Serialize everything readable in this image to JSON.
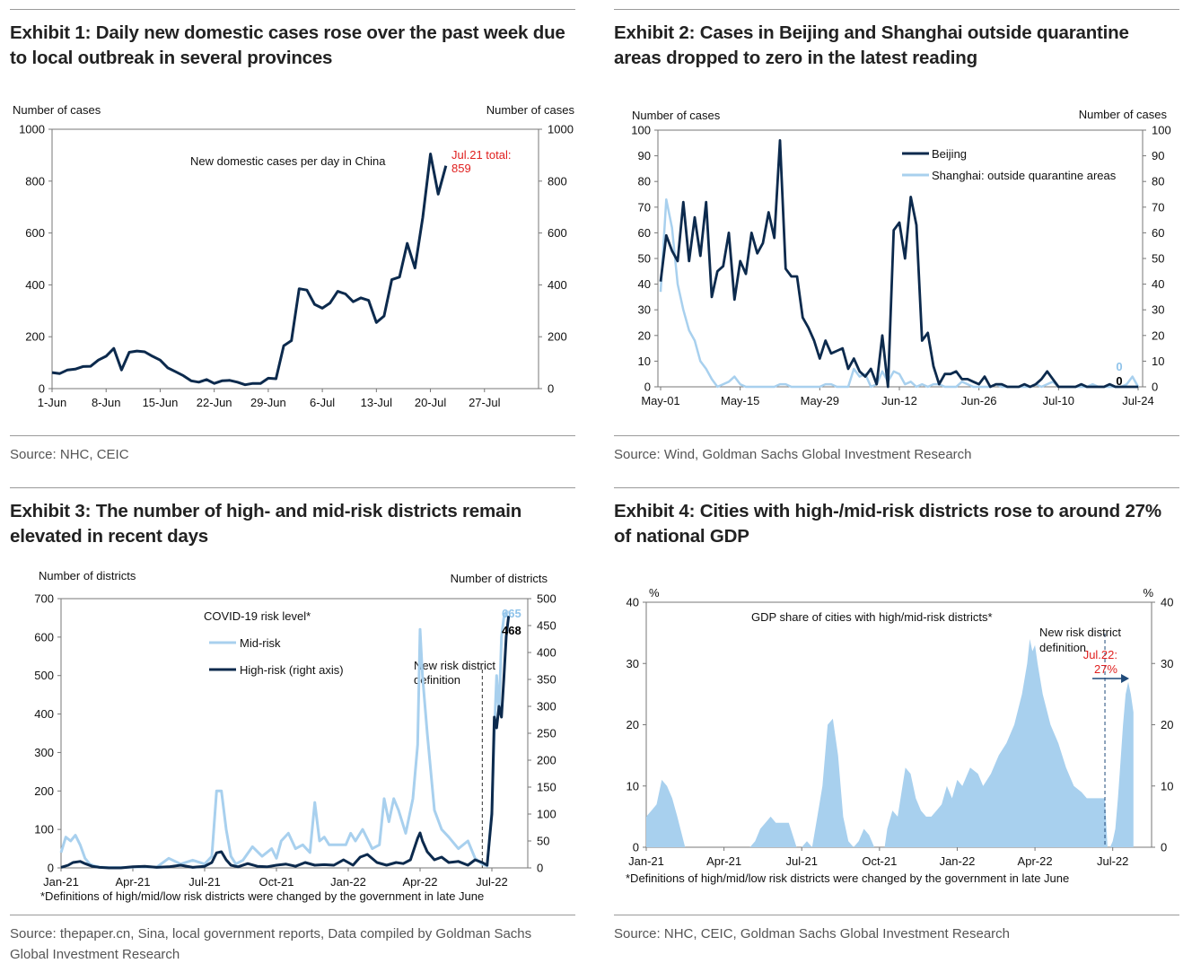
{
  "exhibits": [
    {
      "title": "Exhibit 1: Daily new domestic cases rose over the past week due to local outbreak in several provinces",
      "source": "Source: NHC, CEIC"
    },
    {
      "title": "Exhibit 2: Cases in Beijing and Shanghai outside quarantine areas dropped to zero in the latest reading",
      "source": "Source: Wind, Goldman Sachs Global Investment Research"
    },
    {
      "title": "Exhibit 3: The number of high- and mid-risk districts remain elevated in recent days",
      "source": "Source: thepaper.cn, Sina, local government reports, Data compiled by Goldman Sachs Global Investment Research"
    },
    {
      "title": "Exhibit 4: Cities with high-/mid-risk districts rose to around 27% of national GDP",
      "source": "Source: NHC, CEIC, Goldman Sachs Global Investment Research"
    }
  ],
  "colors": {
    "navy": "#0c2a4d",
    "light_blue": "#a8d0ee",
    "red": "#e0201f",
    "rule": "#9a9a9a"
  },
  "chart_data": [
    {
      "type": "line",
      "title": "New domestic cases per day in China",
      "ylabel_left": "Number of cases",
      "ylabel_right": "Number of cases",
      "ylim": [
        0,
        1000
      ],
      "yticks": [
        "0",
        "200",
        "400",
        "600",
        "800",
        "1000"
      ],
      "xlim": [
        0,
        63
      ],
      "xticks": [
        {
          "x": 0,
          "label": "1-Jun"
        },
        {
          "x": 7,
          "label": "8-Jun"
        },
        {
          "x": 14,
          "label": "15-Jun"
        },
        {
          "x": 21,
          "label": "22-Jun"
        },
        {
          "x": 28,
          "label": "29-Jun"
        },
        {
          "x": 35,
          "label": "6-Jul"
        },
        {
          "x": 42,
          "label": "13-Jul"
        },
        {
          "x": 49,
          "label": "20-Jul"
        },
        {
          "x": 56,
          "label": "27-Jul"
        }
      ],
      "annotation": "Jul.21 total: 859",
      "series": [
        {
          "name": "New domestic cases per day in China",
          "color": "#0c2a4d",
          "values": [
            62,
            58,
            72,
            75,
            85,
            86,
            110,
            125,
            155,
            72,
            140,
            145,
            142,
            125,
            110,
            80,
            65,
            50,
            30,
            25,
            35,
            20,
            30,
            32,
            25,
            15,
            20,
            20,
            40,
            38,
            165,
            185,
            385,
            380,
            325,
            310,
            330,
            375,
            365,
            335,
            350,
            340,
            255,
            280,
            420,
            430,
            560,
            465,
            660,
            905,
            750,
            859
          ]
        }
      ]
    },
    {
      "type": "line",
      "ylabel_left": "Number of cases",
      "ylabel_right": "Number of cases",
      "ylim": [
        0,
        100
      ],
      "yticks": [
        "0",
        "10",
        "20",
        "30",
        "40",
        "50",
        "60",
        "70",
        "80",
        "90",
        "100"
      ],
      "xlim": [
        0,
        84
      ],
      "xticks": [
        {
          "x": 0,
          "label": "May-01"
        },
        {
          "x": 14,
          "label": "May-15"
        },
        {
          "x": 28,
          "label": "May-29"
        },
        {
          "x": 42,
          "label": "Jun-12"
        },
        {
          "x": 56,
          "label": "Jun-26"
        },
        {
          "x": 70,
          "label": "Jul-10"
        },
        {
          "x": 84,
          "label": "Jul-24"
        }
      ],
      "end_labels": [
        "0",
        "0"
      ],
      "series": [
        {
          "name": "Beijing",
          "color": "#0c2a4d",
          "values": [
            41,
            59,
            53,
            49,
            72,
            49,
            66,
            51,
            72,
            35,
            45,
            47,
            60,
            34,
            49,
            44,
            60,
            52,
            56,
            68,
            58,
            96,
            46,
            43,
            43,
            27,
            23,
            18,
            11,
            18,
            13,
            14,
            15,
            7,
            11,
            6,
            4,
            7,
            1,
            20,
            0,
            61,
            64,
            50,
            74,
            63,
            18,
            21,
            8,
            1,
            5,
            5,
            6,
            3,
            3,
            2,
            1,
            4,
            0,
            1,
            1,
            0,
            0,
            0,
            1,
            0,
            1,
            3,
            6,
            3,
            0,
            0,
            0,
            0,
            1,
            0,
            0,
            0,
            0,
            1,
            0,
            0,
            0,
            0,
            0
          ]
        },
        {
          "name": "Shanghai: outside quarantine areas",
          "color": "#a8d0ee",
          "values": [
            37,
            73,
            62,
            40,
            30,
            22,
            18,
            10,
            7,
            3,
            0,
            1,
            2,
            4,
            1,
            0,
            0,
            0,
            0,
            0,
            0,
            1,
            1,
            0,
            0,
            0,
            0,
            0,
            0,
            1,
            1,
            0,
            0,
            0,
            7,
            4,
            5,
            0,
            1,
            6,
            2,
            6,
            5,
            1,
            2,
            0,
            1,
            0,
            1,
            1,
            0,
            0,
            0,
            2,
            1,
            0,
            0,
            0,
            0,
            1,
            0,
            0,
            0,
            0,
            0,
            0,
            1,
            0,
            1,
            2,
            0,
            0,
            0,
            0,
            0,
            0,
            1,
            0,
            0,
            0,
            0,
            0,
            1,
            4,
            0
          ]
        }
      ]
    },
    {
      "type": "line",
      "title": "COVID-19 risk level*",
      "ylabel_left": "Number of districts",
      "ylabel_right": "Number of districts",
      "ylim_left": [
        0,
        700
      ],
      "ylim_right": [
        0,
        500
      ],
      "yticks_left": [
        "0",
        "100",
        "200",
        "300",
        "400",
        "500",
        "600",
        "700"
      ],
      "yticks_right": [
        "0",
        "50",
        "100",
        "150",
        "200",
        "250",
        "300",
        "350",
        "400",
        "450",
        "500"
      ],
      "xlim": [
        0,
        19.5
      ],
      "xticks": [
        {
          "x": 0,
          "label": "Jan-21"
        },
        {
          "x": 3,
          "label": "Apr-21"
        },
        {
          "x": 6,
          "label": "Jul-21"
        },
        {
          "x": 9,
          "label": "Oct-21"
        },
        {
          "x": 12,
          "label": "Jan-22"
        },
        {
          "x": 15,
          "label": "Apr-22"
        },
        {
          "x": 18,
          "label": "Jul-22"
        }
      ],
      "vline_x": 17.6,
      "vline_label": "New risk district definition",
      "end_labels": [
        "665",
        "468"
      ],
      "footnote": "*Definitions of high/mid/low risk districts were changed by the government in late June",
      "series": [
        {
          "name": "Mid-risk",
          "color": "#a8d0ee",
          "axis": "left",
          "x": [
            0,
            0.2,
            0.4,
            0.6,
            0.8,
            1.0,
            1.2,
            1.4,
            1.6,
            2.0,
            2.5,
            3.0,
            3.5,
            4.0,
            4.5,
            5.0,
            5.5,
            6.0,
            6.3,
            6.5,
            6.7,
            6.9,
            7.1,
            7.3,
            7.6,
            8.0,
            8.4,
            8.8,
            9.0,
            9.2,
            9.5,
            9.8,
            10.1,
            10.4,
            10.6,
            10.8,
            11.0,
            11.2,
            11.5,
            11.7,
            11.9,
            12.1,
            12.3,
            12.6,
            13.0,
            13.3,
            13.5,
            13.7,
            13.9,
            14.1,
            14.4,
            14.7,
            14.9,
            15.0,
            15.1,
            15.3,
            15.6,
            15.9,
            16.2,
            16.6,
            17.0,
            17.3,
            17.6,
            17.8,
            18.0,
            18.1,
            18.2,
            18.3,
            18.4,
            18.5,
            18.6,
            18.7
          ],
          "y": [
            40,
            80,
            70,
            85,
            60,
            25,
            10,
            5,
            2,
            1,
            1,
            2,
            3,
            2,
            25,
            10,
            20,
            10,
            30,
            200,
            200,
            100,
            30,
            10,
            20,
            55,
            30,
            50,
            25,
            70,
            90,
            50,
            60,
            40,
            170,
            70,
            80,
            60,
            60,
            60,
            60,
            90,
            70,
            100,
            50,
            60,
            180,
            120,
            180,
            150,
            90,
            180,
            320,
            620,
            500,
            350,
            150,
            100,
            80,
            50,
            70,
            25,
            10,
            5,
            150,
            350,
            500,
            400,
            600,
            650,
            665,
            665
          ]
        },
        {
          "name": "High-risk (right axis)",
          "color": "#0c2a4d",
          "axis": "right",
          "x": [
            0,
            0.3,
            0.5,
            0.8,
            1.0,
            1.3,
            1.6,
            2.0,
            2.5,
            3.0,
            3.5,
            4.0,
            4.5,
            5.0,
            5.5,
            6.0,
            6.3,
            6.5,
            6.7,
            6.9,
            7.1,
            7.4,
            7.8,
            8.2,
            8.6,
            9.0,
            9.4,
            9.8,
            10.2,
            10.6,
            11.0,
            11.4,
            11.8,
            12.2,
            12.5,
            12.8,
            13.2,
            13.6,
            14.0,
            14.3,
            14.6,
            14.9,
            15.0,
            15.1,
            15.3,
            15.6,
            15.9,
            16.2,
            16.6,
            17.0,
            17.3,
            17.6,
            17.8,
            18.0,
            18.1,
            18.2,
            18.3,
            18.4,
            18.5,
            18.6,
            18.7
          ],
          "y": [
            1,
            5,
            10,
            12,
            8,
            3,
            1,
            0,
            0,
            2,
            3,
            1,
            2,
            5,
            1,
            3,
            10,
            28,
            30,
            15,
            5,
            2,
            8,
            3,
            2,
            5,
            7,
            3,
            10,
            5,
            6,
            5,
            15,
            5,
            20,
            25,
            10,
            5,
            10,
            8,
            15,
            55,
            65,
            50,
            30,
            15,
            20,
            10,
            12,
            5,
            15,
            10,
            5,
            100,
            280,
            260,
            300,
            280,
            350,
            430,
            468
          ]
        }
      ]
    },
    {
      "type": "area",
      "title": "GDP share of cities with high/mid-risk districts*",
      "ylabel_left": "%",
      "ylabel_right": "%",
      "ylim": [
        0,
        40
      ],
      "yticks": [
        "0",
        "10",
        "20",
        "30",
        "40"
      ],
      "xlim": [
        0,
        19.5
      ],
      "xticks": [
        {
          "x": 0,
          "label": "Jan-21"
        },
        {
          "x": 3,
          "label": "Apr-21"
        },
        {
          "x": 6,
          "label": "Jul-21"
        },
        {
          "x": 9,
          "label": "Oct-21"
        },
        {
          "x": 12,
          "label": "Jan-22"
        },
        {
          "x": 15,
          "label": "Apr-22"
        },
        {
          "x": 18,
          "label": "Jul-22"
        }
      ],
      "vline_x": 17.7,
      "vline_label": "New risk district definition",
      "annotation": "Jul.22: 27%",
      "footnote": "*Definitions of high/mid/low risk districts were changed by the government in late June",
      "series": [
        {
          "name": "GDP share of cities with high/mid-risk districts",
          "color": "#a8d0ee",
          "x": [
            0,
            0.2,
            0.4,
            0.6,
            0.8,
            1.0,
            1.2,
            1.5,
            1.8,
            2.0,
            2.5,
            3.0,
            3.5,
            4.0,
            4.2,
            4.4,
            4.6,
            4.8,
            5.0,
            5.2,
            5.5,
            5.8,
            6.0,
            6.2,
            6.4,
            6.6,
            6.8,
            7.0,
            7.2,
            7.4,
            7.6,
            7.8,
            8.0,
            8.2,
            8.4,
            8.6,
            8.8,
            9.0,
            9.2,
            9.3,
            9.5,
            9.7,
            10.0,
            10.2,
            10.4,
            10.6,
            10.8,
            11.0,
            11.2,
            11.4,
            11.6,
            11.8,
            12.0,
            12.2,
            12.5,
            12.8,
            13.0,
            13.3,
            13.6,
            13.9,
            14.2,
            14.5,
            14.7,
            14.8,
            14.9,
            15.0,
            15.1,
            15.3,
            15.6,
            15.9,
            16.2,
            16.5,
            16.8,
            17.0,
            17.3,
            17.6,
            17.7,
            17.8,
            17.9,
            18.0,
            18.1,
            18.2,
            18.3,
            18.4,
            18.5,
            18.6,
            18.7,
            18.8
          ],
          "y": [
            5,
            6,
            7,
            11,
            10,
            8,
            5,
            0,
            0,
            0,
            0,
            0,
            0,
            0,
            1,
            3,
            4,
            5,
            4,
            4,
            4,
            0,
            0,
            1,
            0,
            5,
            10,
            20,
            21,
            15,
            5,
            1,
            0,
            1,
            3,
            2,
            0,
            0,
            0,
            3,
            6,
            5,
            13,
            12,
            8,
            6,
            5,
            5,
            6,
            7,
            10,
            8,
            11,
            10,
            13,
            12,
            10,
            12,
            15,
            17,
            20,
            25,
            30,
            34,
            32,
            33,
            30,
            25,
            20,
            17,
            13,
            10,
            9,
            8,
            8,
            8,
            8,
            0,
            0,
            1,
            3,
            8,
            14,
            20,
            25,
            27,
            25,
            22
          ]
        }
      ]
    }
  ]
}
